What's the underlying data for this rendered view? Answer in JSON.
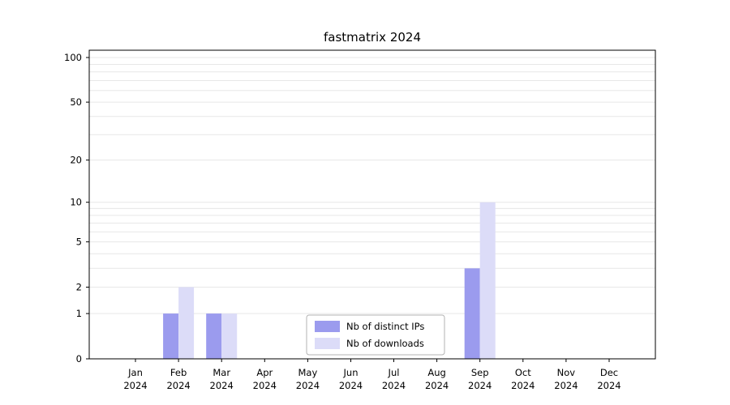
{
  "chart_data": {
    "type": "bar",
    "title": "fastmatrix 2024",
    "categories": [
      {
        "month": "Jan",
        "year": "2024"
      },
      {
        "month": "Feb",
        "year": "2024"
      },
      {
        "month": "Mar",
        "year": "2024"
      },
      {
        "month": "Apr",
        "year": "2024"
      },
      {
        "month": "May",
        "year": "2024"
      },
      {
        "month": "Jun",
        "year": "2024"
      },
      {
        "month": "Jul",
        "year": "2024"
      },
      {
        "month": "Aug",
        "year": "2024"
      },
      {
        "month": "Sep",
        "year": "2024"
      },
      {
        "month": "Oct",
        "year": "2024"
      },
      {
        "month": "Nov",
        "year": "2024"
      },
      {
        "month": "Dec",
        "year": "2024"
      }
    ],
    "series": [
      {
        "name": "Nb of distinct IPs",
        "color": "#9b9bee",
        "values": [
          0,
          1,
          1,
          0,
          0,
          0,
          0,
          0,
          3,
          0,
          0,
          0
        ]
      },
      {
        "name": "Nb of downloads",
        "color": "#dcdcf8",
        "values": [
          0,
          2,
          1,
          0,
          0,
          0,
          0,
          0,
          10,
          0,
          0,
          0
        ]
      }
    ],
    "y_axis": {
      "scale": "log1p",
      "ticks": [
        0,
        1,
        2,
        5,
        10,
        20,
        50,
        100
      ],
      "gridlines": [
        1,
        2,
        3,
        4,
        5,
        6,
        7,
        8,
        9,
        10,
        20,
        30,
        40,
        50,
        60,
        70,
        80,
        90,
        100
      ],
      "max": 112
    },
    "xlabel": "",
    "ylabel": "",
    "grid": true,
    "legend_position": "lower-center",
    "colors": {
      "gridline": "#e7e7e7",
      "axis": "#000000",
      "background": "#ffffff"
    }
  }
}
